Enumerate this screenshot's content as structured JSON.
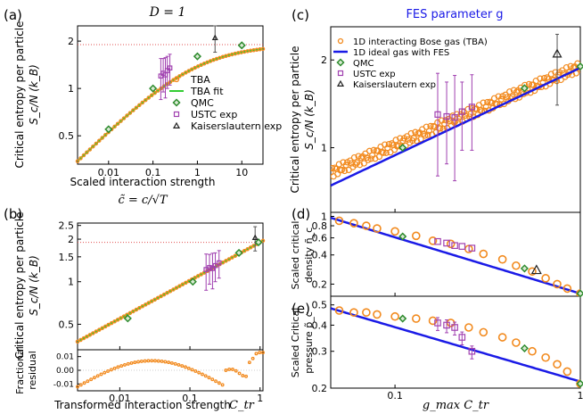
{
  "colors": {
    "tba": "#f28a1e",
    "fit": "#33cc33",
    "qmc": "#2e8b2e",
    "ustc": "#a040b0",
    "kais": "#222222",
    "fes": "#1a1ae6",
    "guide": "#e05050"
  },
  "figure": {
    "title_left": "D = 1",
    "title_right": "FES parameter g",
    "panel_labels": [
      "(a)",
      "(b)",
      "(c)",
      "(d)",
      "(e)"
    ],
    "ylabel_entropy_1": "Critical entropy per particle",
    "ylabel_entropy_2": "S_c/N (k_B)",
    "xlabel_a": "Scaled interaction strength",
    "xlabel_a_formula": "c̃ = c/√T",
    "xlabel_b": "Transformed interaction strength",
    "xlabel_b_sym": "C_tr",
    "residual_label_1": "Fractional",
    "residual_label_2": "residual",
    "ylabel_d_1": "Scaled critical",
    "ylabel_d_2": "density ñ_c",
    "ylabel_e_1": "Scaled Critical",
    "ylabel_e_2": "pressure p̃_c",
    "xlabel_cde": "g_max C_tr"
  },
  "legend_a": [
    "TBA",
    "TBA fit",
    "QMC",
    "USTC exp",
    "Kaiserslautern exp"
  ],
  "legend_c": [
    "1D interacting Bose gas (TBA)",
    "1D ideal gas with FES",
    "QMC",
    "USTC exp",
    "Kaiserslautern exp"
  ],
  "chart_data": [
    {
      "panel": "a",
      "type": "scatter",
      "xscale": "log",
      "yscale": "log",
      "xlim": [
        0.002,
        30
      ],
      "ylim": [
        0.33,
        2.5
      ],
      "xticks": [
        "0.01",
        "0.1",
        "1",
        "10"
      ],
      "yticks": [
        "0.5",
        "1",
        "2"
      ],
      "hline": 1.9,
      "series": [
        {
          "name": "TBA",
          "curve": "logistic",
          "low_slope": 0.28,
          "pivot_x": 0.01,
          "pivot_y": 0.55,
          "sat": 1.9
        },
        {
          "name": "TBA fit",
          "curve": "logistic"
        },
        {
          "name": "QMC",
          "x": [
            0.01,
            0.1,
            1,
            10
          ],
          "y": [
            0.55,
            1.0,
            1.6,
            1.88
          ]
        },
        {
          "name": "USTC exp",
          "x": [
            0.15,
            0.17,
            0.19,
            0.21,
            0.24
          ],
          "y": [
            1.2,
            1.25,
            1.22,
            1.3,
            1.35
          ],
          "err": [
            0.35,
            0.3,
            0.35,
            0.3,
            0.3
          ]
        },
        {
          "name": "Kaiserslautern exp",
          "x": [
            2.5
          ],
          "y": [
            2.1
          ],
          "err": [
            0.4
          ]
        }
      ]
    },
    {
      "panel": "b",
      "type": "scatter",
      "xscale": "log",
      "yscale": "log",
      "xlim": [
        0.0025,
        1.1
      ],
      "ylim": [
        0.33,
        2.6
      ],
      "xticks": [
        "0.01",
        "0.1",
        "1"
      ],
      "yticks": [
        "0.5",
        "1",
        "1.5",
        "2",
        "2.5"
      ],
      "hline": 1.9,
      "series": [
        {
          "name": "TBA",
          "curve": "power",
          "exponent": 0.27
        },
        {
          "name": "QMC",
          "x": [
            0.013,
            0.11,
            0.5,
            0.95
          ],
          "y": [
            0.55,
            1.0,
            1.6,
            1.9
          ]
        },
        {
          "name": "USTC exp",
          "x": [
            0.17,
            0.19,
            0.21,
            0.23,
            0.26
          ],
          "y": [
            1.22,
            1.26,
            1.24,
            1.3,
            1.36
          ],
          "err": [
            0.35,
            0.3,
            0.35,
            0.3,
            0.3
          ]
        },
        {
          "name": "Kaiserslautern exp",
          "x": [
            0.85
          ],
          "y": [
            2.05
          ],
          "err": [
            0.4
          ]
        }
      ]
    },
    {
      "panel": "b-residual",
      "type": "scatter",
      "xscale": "log",
      "ylim": [
        -0.015,
        0.015
      ],
      "yticks": [
        "0.01",
        "0.00",
        "-0.01"
      ],
      "series": [
        {
          "name": "TBA residual",
          "curve": "oscillation"
        }
      ]
    },
    {
      "panel": "c",
      "type": "line",
      "xscale": "log",
      "yscale": "log",
      "xlim": [
        0.045,
        1.0
      ],
      "ylim": [
        0.6,
        2.6
      ],
      "xticks": [
        "0.1",
        "1"
      ],
      "yticks": [
        "1",
        "2"
      ],
      "series": [
        {
          "name": "1D interacting Bose gas (TBA)",
          "curve": "power",
          "exponent": 0.27
        },
        {
          "name": "1D ideal gas with FES",
          "curve": "power",
          "exponent": 0.3
        },
        {
          "name": "QMC",
          "x": [
            0.11,
            0.5,
            1.0
          ],
          "y": [
            1.0,
            1.6,
            1.9
          ]
        },
        {
          "name": "USTC exp",
          "x": [
            0.17,
            0.19,
            0.21,
            0.23,
            0.26
          ],
          "y": [
            1.3,
            1.28,
            1.27,
            1.33,
            1.38
          ],
          "err": [
            0.5,
            0.4,
            0.5,
            0.35,
            0.4
          ]
        },
        {
          "name": "Kaiserslautern exp",
          "x": [
            0.75
          ],
          "y": [
            2.1
          ],
          "err": [
            0.4
          ]
        }
      ]
    },
    {
      "panel": "d",
      "type": "scatter",
      "xscale": "log",
      "yscale": "log",
      "xlim": [
        0.045,
        1.0
      ],
      "ylim": [
        0.15,
        1.1
      ],
      "xticks": [
        "0.1",
        "1"
      ],
      "yticks": [
        "0.2",
        "0.4",
        "0.6",
        "0.8",
        "1"
      ],
      "series": [
        {
          "name": "TBA",
          "x": [
            0.05,
            0.06,
            0.07,
            0.08,
            0.1,
            0.13,
            0.16,
            0.2,
            0.25,
            0.3,
            0.38,
            0.45,
            0.55,
            0.65,
            0.75,
            0.85,
            1.0
          ],
          "y": [
            0.9,
            0.85,
            0.8,
            0.75,
            0.7,
            0.63,
            0.56,
            0.52,
            0.46,
            0.41,
            0.36,
            0.31,
            0.27,
            0.23,
            0.2,
            0.18,
            0.16
          ]
        },
        {
          "name": "FES",
          "curve": "power",
          "exponent": -0.58
        },
        {
          "name": "QMC",
          "x": [
            0.11,
            0.5,
            1.0
          ],
          "y": [
            0.62,
            0.29,
            0.16
          ]
        },
        {
          "name": "USTC exp",
          "x": [
            0.17,
            0.19,
            0.21,
            0.23,
            0.26
          ],
          "y": [
            0.55,
            0.53,
            0.5,
            0.49,
            0.47
          ]
        },
        {
          "name": "Kaiserslautern exp",
          "x": [
            0.58
          ],
          "y": [
            0.28
          ]
        }
      ]
    },
    {
      "panel": "e",
      "type": "scatter",
      "xscale": "log",
      "yscale": "log",
      "xlim": [
        0.045,
        1.0
      ],
      "ylim": [
        0.2,
        0.55
      ],
      "xticks": [
        "0.1",
        "1"
      ],
      "yticks": [
        "0.2",
        "0.3",
        "0.4",
        "0.5"
      ],
      "series": [
        {
          "name": "TBA",
          "x": [
            0.05,
            0.06,
            0.07,
            0.08,
            0.1,
            0.13,
            0.16,
            0.2,
            0.25,
            0.3,
            0.38,
            0.45,
            0.55,
            0.65,
            0.75,
            0.85,
            1.0
          ],
          "y": [
            0.47,
            0.46,
            0.46,
            0.45,
            0.44,
            0.43,
            0.42,
            0.41,
            0.39,
            0.37,
            0.35,
            0.33,
            0.3,
            0.28,
            0.26,
            0.24,
            0.21
          ]
        },
        {
          "name": "FES",
          "curve": "power",
          "exponent": -0.26
        },
        {
          "name": "QMC",
          "x": [
            0.11,
            0.5,
            1.0
          ],
          "y": [
            0.43,
            0.31,
            0.21
          ]
        },
        {
          "name": "USTC exp",
          "x": [
            0.17,
            0.19,
            0.21,
            0.23,
            0.26
          ],
          "y": [
            0.41,
            0.4,
            0.39,
            0.35,
            0.3
          ]
        },
        {
          "name": "Kaiserslautern exp",
          "x": [],
          "y": []
        }
      ]
    }
  ]
}
